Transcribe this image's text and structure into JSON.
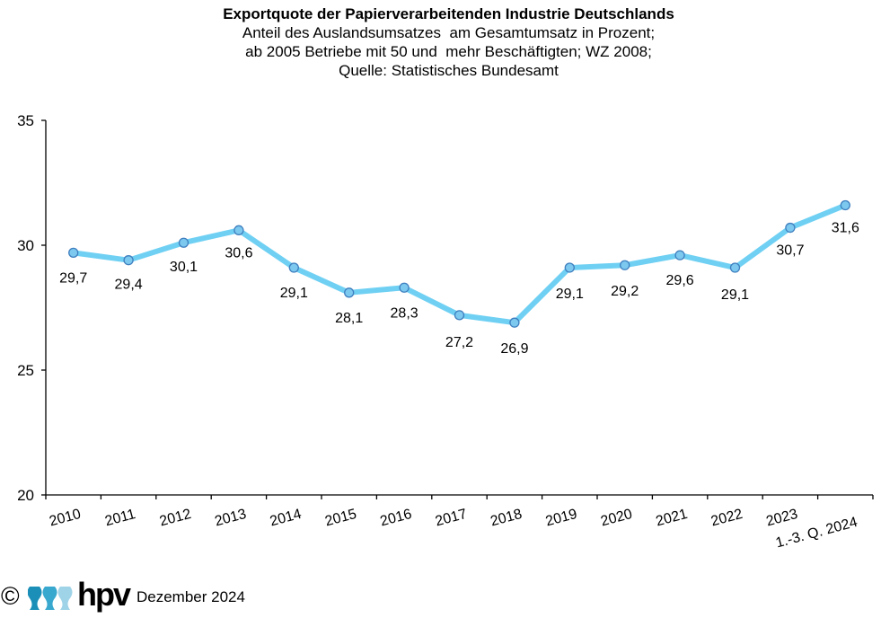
{
  "chart_data": {
    "type": "line",
    "title": "Exportquote der Papierverarbeitenden Industrie Deutschlands",
    "subtitle": [
      "Anteil des Auslandsumsatzes  am Gesamtumsatz in Prozent;",
      "ab 2005 Betriebe mit 50 und  mehr Beschäftigten; WZ 2008;",
      "Quelle: Statistisches Bundesamt"
    ],
    "xlabel": "",
    "ylabel": "",
    "ylim": [
      20,
      35
    ],
    "yticks": [
      "20",
      "25",
      "30",
      "35"
    ],
    "ytick_values": [
      20,
      25,
      30,
      35
    ],
    "grid": false,
    "categories": [
      "2010",
      "2011",
      "2012",
      "2013",
      "2014",
      "2015",
      "2016",
      "2017",
      "2018",
      "2019",
      "2020",
      "2021",
      "2022",
      "2023",
      "1.-3. Q. 2024"
    ],
    "series": [
      {
        "name": "Exportquote",
        "values": [
          29.7,
          29.4,
          30.1,
          30.6,
          29.1,
          28.1,
          28.3,
          27.2,
          26.9,
          29.1,
          29.2,
          29.6,
          29.1,
          30.7,
          31.6
        ],
        "labels": [
          "29,7",
          "29,4",
          "30,1",
          "30,6",
          "29,1",
          "28,1",
          "28,3",
          "27,2",
          "26,9",
          "29,1",
          "29,2",
          "29,6",
          "29,1",
          "30,7",
          "31,6"
        ],
        "color": "#6fd0f3",
        "marker_fill": "#7cc8ef",
        "marker_edge": "#3f7fbf"
      }
    ]
  },
  "footer": {
    "copyright": "©",
    "logo": "hpv",
    "date": "Dezember 2024",
    "logo_colors": [
      "#1b8fb8",
      "#39a8cf",
      "#9fd3e8"
    ]
  }
}
